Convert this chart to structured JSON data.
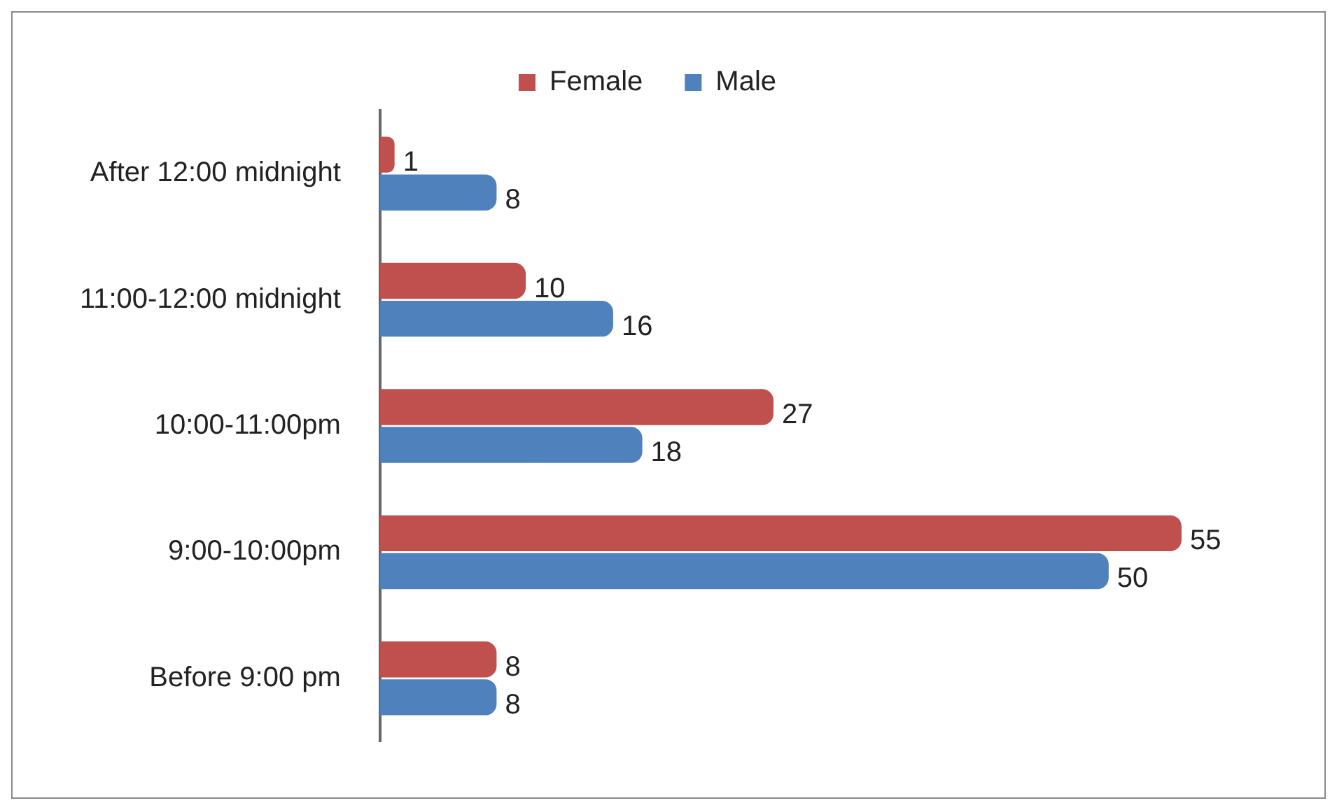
{
  "chart_data": {
    "type": "bar",
    "orientation": "horizontal",
    "categories": [
      "After 12:00 midnight",
      "11:00-12:00 midnight",
      "10:00-11:00pm",
      "9:00-10:00pm",
      "Before 9:00 pm"
    ],
    "series": [
      {
        "name": "Female",
        "color": "#c0504d",
        "values": [
          1,
          10,
          27,
          55,
          8
        ]
      },
      {
        "name": "Male",
        "color": "#4f81bd",
        "values": [
          8,
          16,
          18,
          50,
          8
        ]
      }
    ],
    "data_labels": true,
    "legend": "top",
    "grid": false,
    "tick_labels": "y"
  }
}
